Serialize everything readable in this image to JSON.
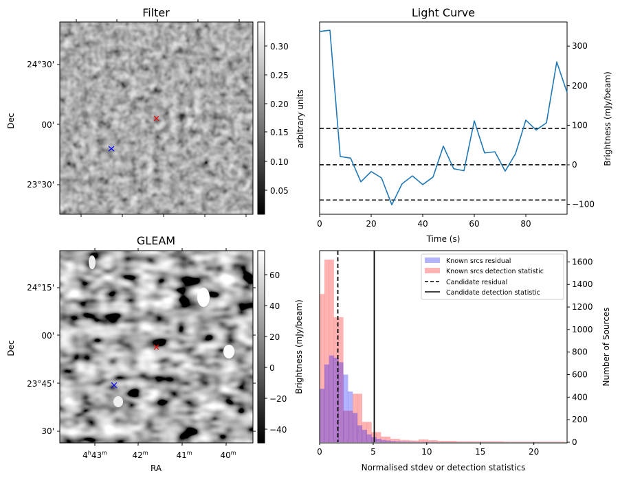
{
  "figure": {
    "panels": [
      "Filter",
      "Light Curve",
      "GLEAM",
      "Histogram"
    ]
  },
  "chart_data": [
    {
      "type": "heatmap",
      "title": "Filter",
      "xlabel": "",
      "ylabel": "Dec",
      "y_ticks": [
        "24°30'",
        "00'",
        "23°30'"
      ],
      "colorbar": {
        "label": "arbitrary units",
        "ticks": [
          "0.05",
          "0.10",
          "0.15",
          "0.20",
          "0.25",
          "0.30"
        ],
        "range": [
          0.01,
          0.335
        ],
        "colormap": "gray"
      },
      "markers": [
        {
          "name": "candidate",
          "symbol": "x",
          "color": "#ff0000"
        },
        {
          "name": "reference",
          "symbol": "x",
          "color": "#0000ff"
        }
      ]
    },
    {
      "type": "line",
      "title": "Light Curve",
      "xlabel": "Time (s)",
      "ylabel": "Brightness (mJy/beam)",
      "x_ticks": [
        "0",
        "20",
        "40",
        "60",
        "80"
      ],
      "y_ticks": [
        "−100",
        "0",
        "100",
        "200",
        "300"
      ],
      "xlim": [
        0,
        96
      ],
      "ylim": [
        -125,
        361
      ],
      "series": [
        {
          "name": "light curve",
          "color": "#1f77b4",
          "x": [
            0,
            4,
            8,
            12,
            16,
            20,
            24,
            28,
            32,
            36,
            40,
            44,
            48,
            52,
            56,
            60,
            64,
            68,
            72,
            76,
            80,
            84,
            88,
            92,
            96
          ],
          "values": [
            337,
            340,
            21,
            17,
            -43,
            -17,
            -33,
            -101,
            -48,
            -28,
            -50,
            -31,
            47,
            -10,
            -15,
            111,
            30,
            33,
            -16,
            28,
            113,
            88,
            106,
            260,
            183
          ]
        }
      ],
      "hlines": [
        {
          "y": 92,
          "style": "dashed",
          "color": "#000000"
        },
        {
          "y": 0,
          "style": "dashed",
          "color": "#000000"
        },
        {
          "y": -89,
          "style": "dashed",
          "color": "#000000"
        }
      ]
    },
    {
      "type": "heatmap",
      "title": "GLEAM",
      "xlabel": "RA",
      "ylabel": "Dec",
      "x_ticks": [
        "4h43m",
        "42m",
        "41m",
        "40m"
      ],
      "x_tick_parts": [
        {
          "main": "4",
          "sup1": "h",
          "main2": "43",
          "sup2": "m"
        },
        {
          "main": "",
          "sup1": "",
          "main2": "42",
          "sup2": "m"
        },
        {
          "main": "",
          "sup1": "",
          "main2": "41",
          "sup2": "m"
        },
        {
          "main": "",
          "sup1": "",
          "main2": "40",
          "sup2": "m"
        }
      ],
      "y_ticks": [
        "24°15'",
        "00'",
        "23°45'",
        "30'"
      ],
      "colorbar": {
        "label": "Brightness (mJy/beam)",
        "ticks": [
          "−40",
          "−20",
          "0",
          "20",
          "40",
          "60"
        ],
        "range": [
          -49,
          75
        ],
        "colormap": "gray"
      },
      "markers": [
        {
          "name": "candidate",
          "symbol": "x",
          "color": "#ff0000"
        },
        {
          "name": "reference",
          "symbol": "x",
          "color": "#0000ff"
        }
      ]
    },
    {
      "type": "bar",
      "title": "",
      "xlabel": "Normalised stdev or detection statistics",
      "ylabel": "Number of Sources",
      "x_ticks": [
        "0",
        "5",
        "10",
        "15",
        "20"
      ],
      "y_ticks": [
        "0",
        "200",
        "400",
        "600",
        "800",
        "1000",
        "1200",
        "1400",
        "1600"
      ],
      "xlim": [
        0,
        23.1
      ],
      "ylim": [
        0,
        1700
      ],
      "bin_width": 0.44,
      "series": [
        {
          "name": "Known srcs residual",
          "color": "#0000ff",
          "alpha": 0.3,
          "bin_start": 0,
          "values": [
            475,
            690,
            770,
            750,
            710,
            600,
            450,
            260,
            150,
            110,
            70,
            45,
            30,
            20,
            15,
            10,
            8,
            6,
            5,
            4,
            3,
            3,
            2,
            2,
            2,
            1,
            1,
            1,
            1,
            1,
            1,
            1,
            1,
            1,
            1,
            1,
            1,
            1,
            1,
            1,
            0,
            0,
            0,
            0,
            0,
            0,
            0,
            0,
            0,
            0,
            0,
            0
          ]
        },
        {
          "name": "Known srcs detection statistic",
          "color": "#ff0000",
          "alpha": 0.3,
          "bin_start": 0,
          "values": [
            1315,
            1620,
            1620,
            1110,
            1110,
            280,
            280,
            430,
            430,
            180,
            180,
            90,
            90,
            50,
            50,
            30,
            30,
            20,
            20,
            15,
            15,
            25,
            25,
            18,
            18,
            12,
            12,
            12,
            12,
            8,
            8,
            8,
            8,
            8,
            8,
            8,
            8,
            8,
            8,
            5,
            5,
            5,
            5,
            5,
            5,
            5,
            5,
            5,
            5,
            5,
            5,
            5
          ]
        }
      ],
      "vlines": [
        {
          "name": "Candidate residual",
          "x": 1.7,
          "style": "dashed",
          "color": "#000000"
        },
        {
          "name": "Candidate detection statistic",
          "x": 5.1,
          "style": "solid",
          "color": "#000000"
        }
      ],
      "legend": {
        "position": "top-right",
        "entries": [
          {
            "label": "Known srcs residual",
            "kind": "patch",
            "color": "#b3b3ff"
          },
          {
            "label": "Known srcs detection statistic",
            "kind": "patch",
            "color": "#ffb3b3"
          },
          {
            "label": "Candidate residual",
            "kind": "dashed",
            "color": "#000000"
          },
          {
            "label": "Candidate detection statistic",
            "kind": "solid",
            "color": "#000000"
          }
        ]
      }
    }
  ]
}
